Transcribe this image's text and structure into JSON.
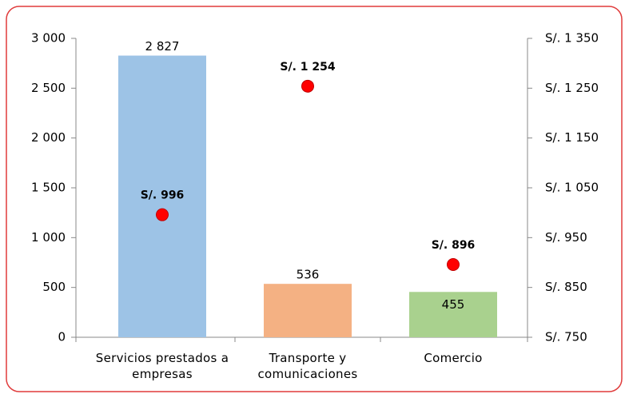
{
  "chart_data": {
    "type": "bar",
    "categories": [
      "Servicios prestados a empresas",
      "Transporte y comunicaciones",
      "Comercio"
    ],
    "series": [
      {
        "type": "bar",
        "colors": [
          "#9dc3e6",
          "#f4b183",
          "#a9d18e"
        ],
        "values": [
          2827,
          536,
          455
        ],
        "value_labels": [
          "2 827",
          "536",
          "455"
        ]
      },
      {
        "type": "scatter",
        "axis": "y2",
        "color": "#ff0000",
        "values": [
          996,
          1254,
          896
        ],
        "value_labels": [
          "S/. 996",
          "S/. 1 254",
          "S/. 896"
        ]
      }
    ],
    "ylim": [
      0,
      3000
    ],
    "yticks": [
      0,
      500,
      {
        "value": 1000,
        "label": "1 000"
      },
      {
        "value": 1500,
        "label": "1 500"
      },
      {
        "value": 2000,
        "label": "2 000"
      },
      {
        "value": 2500,
        "label": "2 500"
      },
      {
        "value": 3000,
        "label": "3 000"
      }
    ],
    "y2lim": [
      750,
      1350
    ],
    "y2ticks": [
      {
        "value": 750,
        "label": "S/. 750"
      },
      {
        "value": 850,
        "label": "S/. 850"
      },
      {
        "value": 950,
        "label": "S/. 950"
      },
      {
        "value": 1050,
        "label": "S/. 1 050"
      },
      {
        "value": 1150,
        "label": "S/. 1 150"
      },
      {
        "value": 1250,
        "label": "S/. 1 250"
      },
      {
        "value": 1350,
        "label": "S/. 1 350"
      }
    ]
  }
}
